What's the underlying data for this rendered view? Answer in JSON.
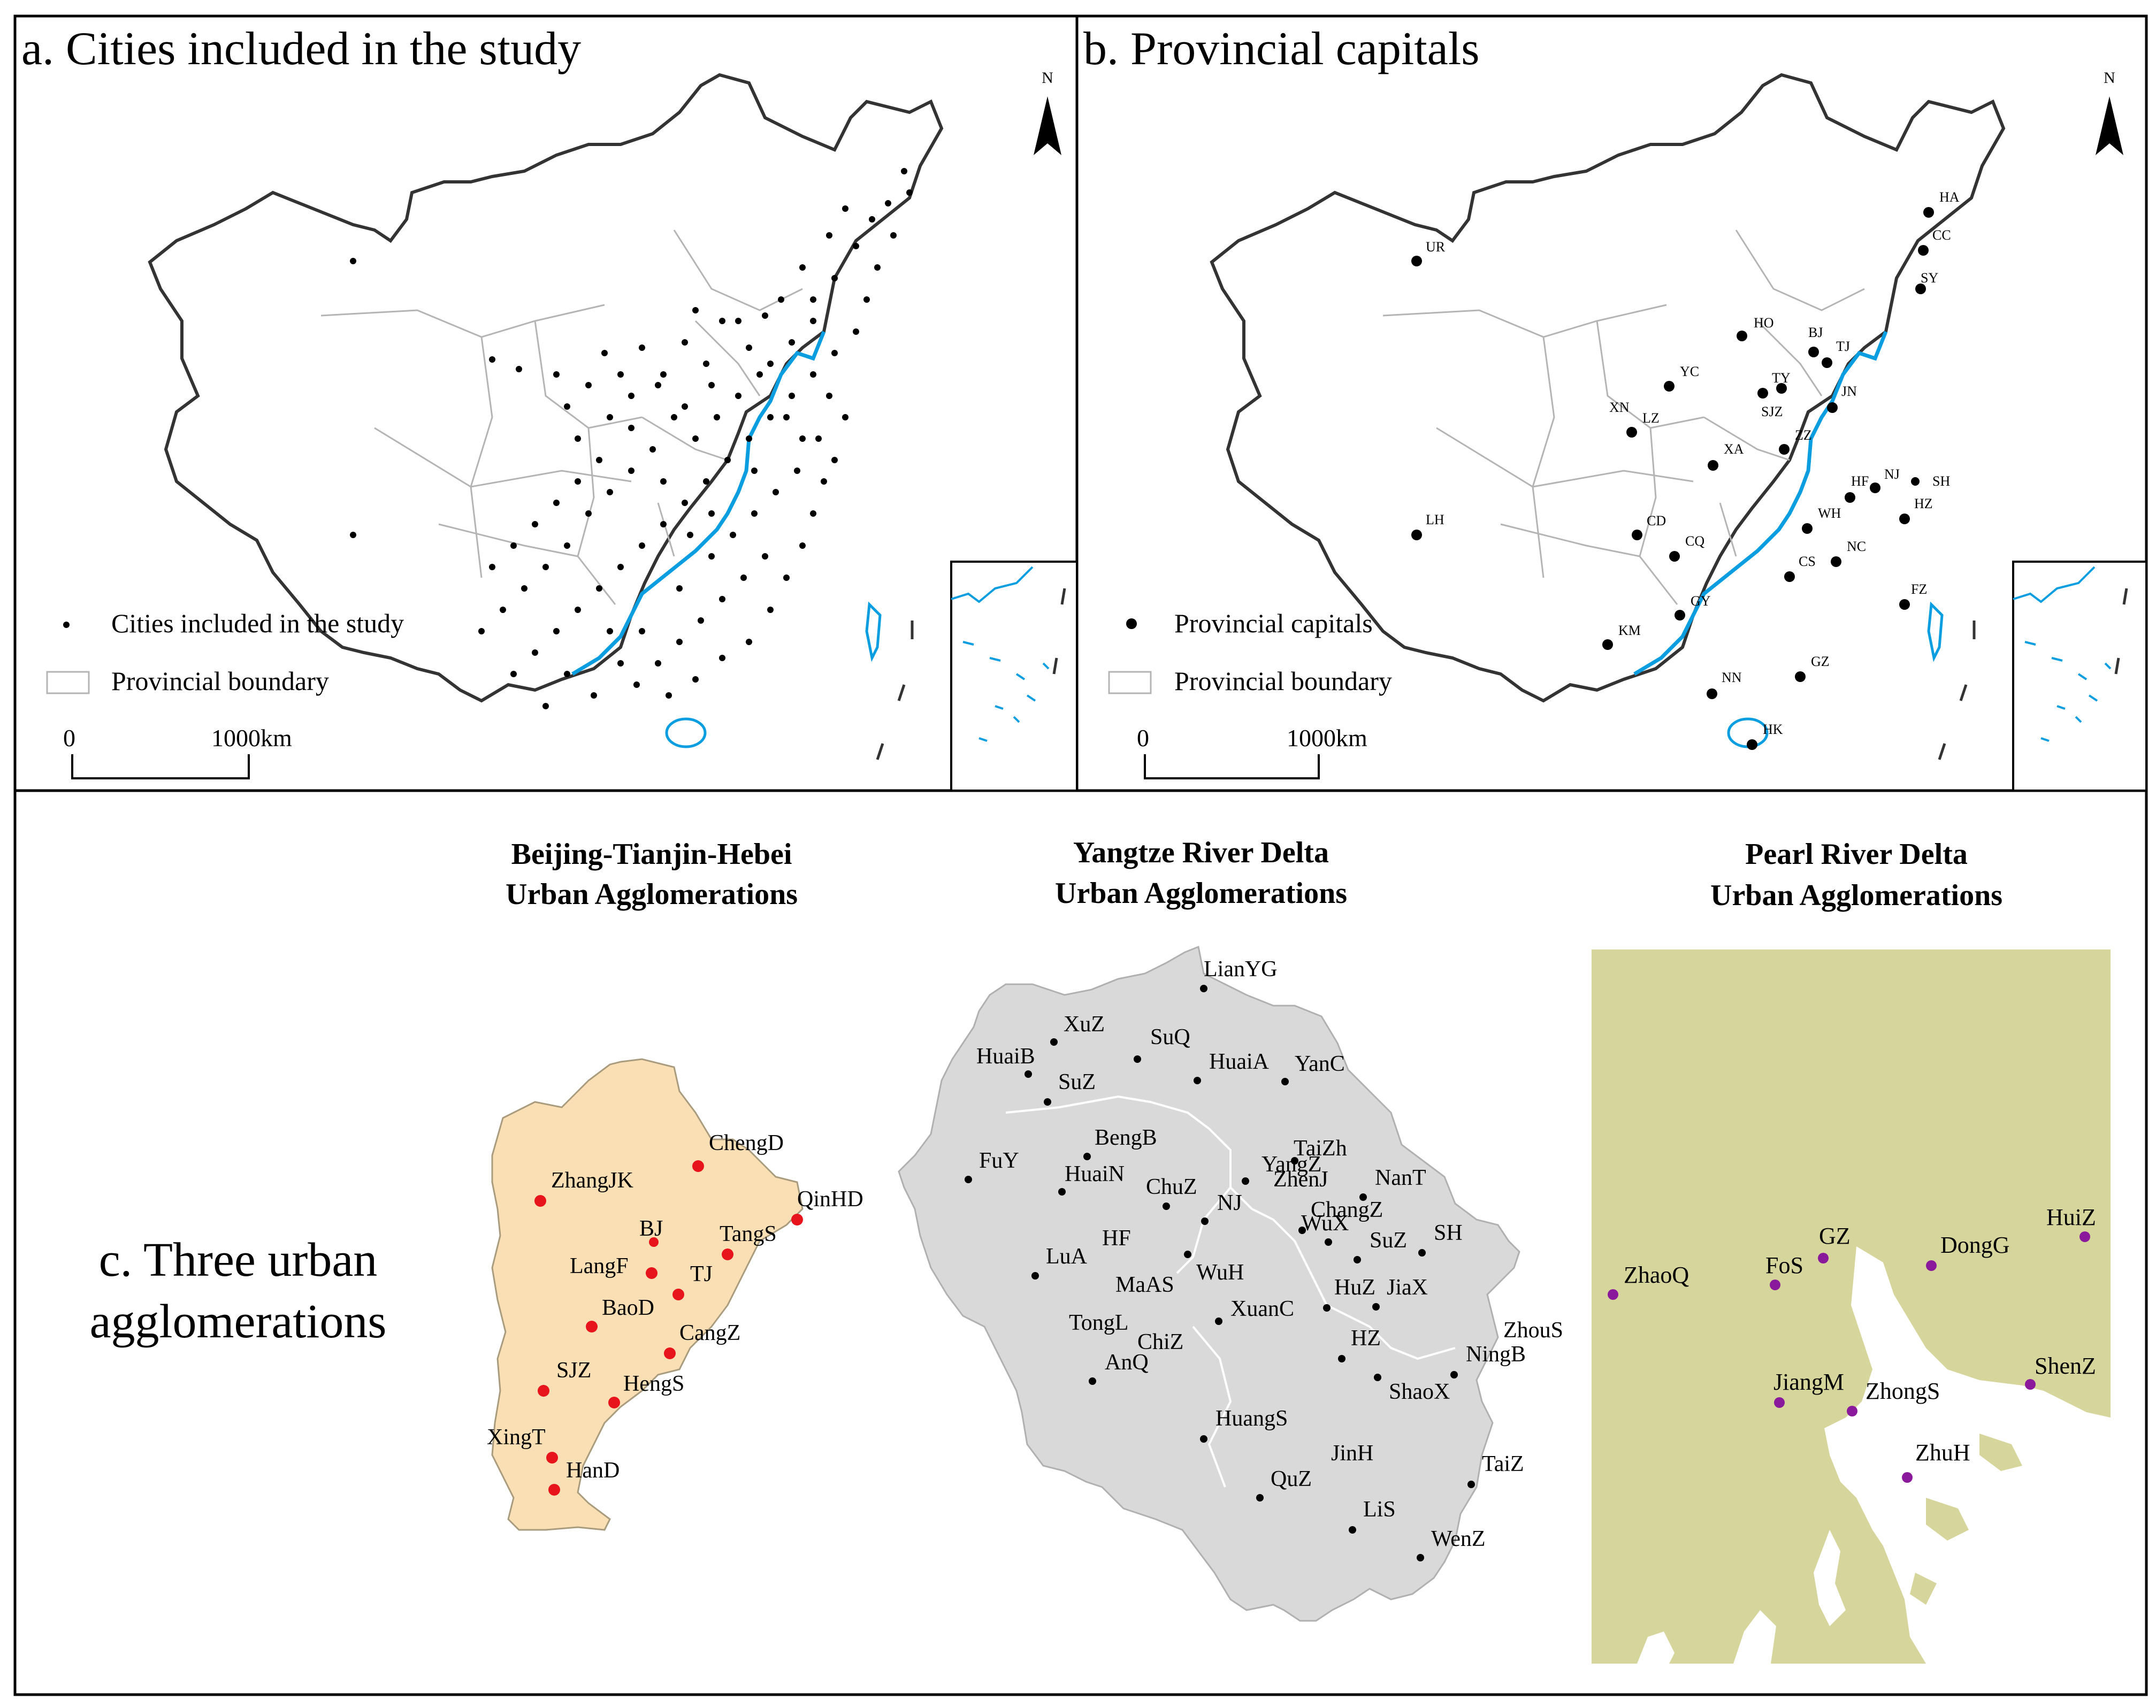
{
  "panel_a": {
    "title": "a. Cities included in the study",
    "north": "N",
    "legend_cities": "Cities included in the study",
    "legend_boundary": "Provincial boundary",
    "scale_zero": "0",
    "scale_end": "1000km"
  },
  "panel_b": {
    "title": "b. Provincial capitals",
    "north": "N",
    "legend_capitals": "Provincial capitals",
    "legend_boundary": "Provincial boundary",
    "scale_zero": "0",
    "scale_end": "1000km",
    "capitals": [
      "HA",
      "CC",
      "SY",
      "UR",
      "HO",
      "BJ",
      "TJ",
      "YC",
      "TY",
      "JN",
      "SJZ",
      "XN",
      "LZ",
      "ZZ",
      "XA",
      "HF",
      "NJ",
      "SH",
      "WH",
      "HZ",
      "LH",
      "CD",
      "CQ",
      "CS",
      "NC",
      "FZ",
      "GY",
      "KM",
      "GZ",
      "NN",
      "HK"
    ]
  },
  "panel_c": {
    "title_line1": "c. Three urban",
    "title_line2": "agglomerations",
    "bth": {
      "title_line1": "Beijing-Tianjin-Hebei",
      "title_line2": "Urban Agglomerations",
      "color": "#f9dfb3",
      "dot_color": "#e8141b",
      "cities": [
        "ChengD",
        "ZhangJK",
        "QinHD",
        "BJ",
        "TangS",
        "LangF",
        "TJ",
        "BaoD",
        "CangZ",
        "SJZ",
        "HengS",
        "XingT",
        "HanD"
      ]
    },
    "yrd": {
      "title_line1": "Yangtze River Delta",
      "title_line2": "Urban Agglomerations",
      "color": "#d9d9d9",
      "dot_color": "#000000",
      "cities": [
        "LianYG",
        "XuZ",
        "HuaiB",
        "SuQ",
        "HuaiA",
        "YanC",
        "SuZ",
        "BengB",
        "FuY",
        "HuaiN",
        "TaiZh",
        "YangZ",
        "NanT",
        "ChuZ",
        "NJ",
        "ChangZ",
        "WuX",
        "SuZ",
        "SH",
        "HF",
        "LuA",
        "WuH",
        "MaAS",
        "HuZ",
        "JiaX",
        "TongL",
        "XuanC",
        "ChiZ",
        "ZhouS",
        "AnQ",
        "HZ",
        "NingB",
        "ShaoX",
        "HuangS",
        "JinH",
        "QuZ",
        "TaiZ",
        "LiS",
        "WenZ",
        "ZhenJ"
      ]
    },
    "prd": {
      "title_line1": "Pearl River Delta",
      "title_line2": "Urban Agglomerations",
      "color": "#d6d59b",
      "dot_color": "#8a1a9b",
      "cities": [
        "GZ",
        "HuiZ",
        "DongG",
        "ZhaoQ",
        "FoS",
        "ShenZ",
        "JiangM",
        "ZhongS",
        "ZhuH"
      ]
    }
  },
  "colors": {
    "coast": "#0a9ee0",
    "frame": "#000000",
    "province": "#b4b4b4"
  }
}
